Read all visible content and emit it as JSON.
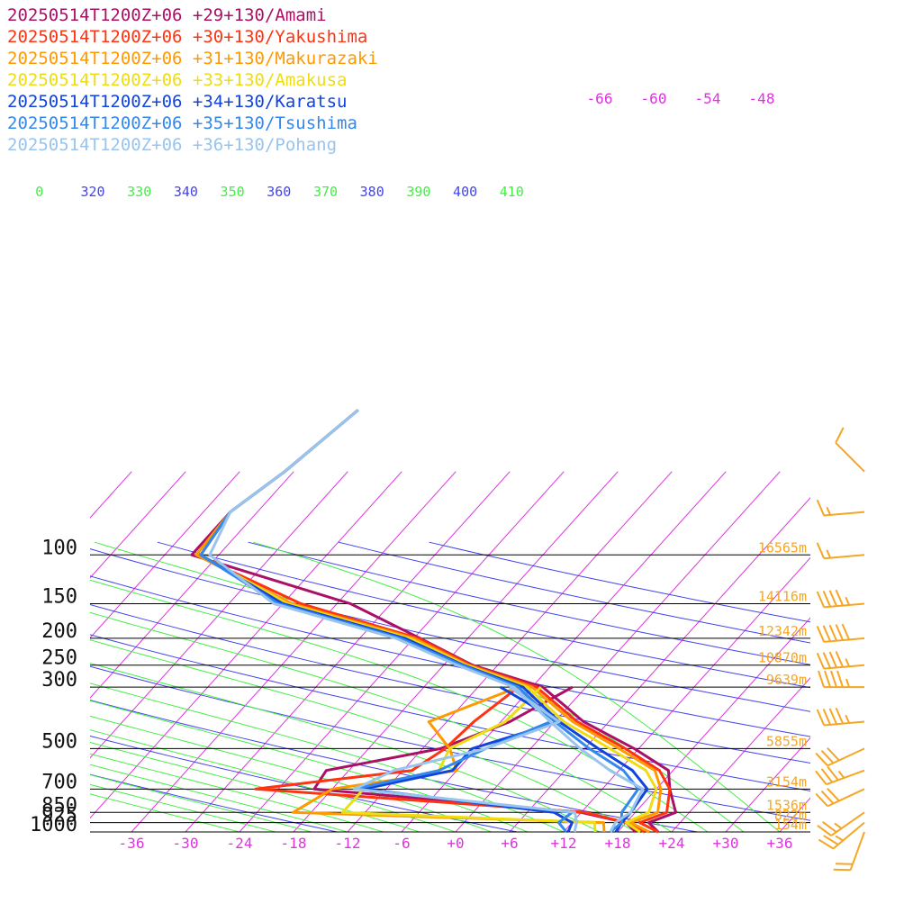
{
  "colors": {
    "isotherm": "#dd33dd",
    "dry_adiabat": "#4444ee",
    "moist_adiabat": "#44ee44",
    "isobar": "#000000",
    "height_label": "#f5a623",
    "barb": "#f5a623"
  },
  "chart_data": {
    "type": "line",
    "title": "",
    "xlabel": "",
    "ylabel": "",
    "y_scale": "log-pressure",
    "xlim": [
      -40,
      40
    ],
    "ylim": [
      1000,
      100
    ],
    "x_ticks": [
      "-36",
      "-30",
      "-24",
      "-18",
      "-12",
      "-6",
      "+0",
      "+6",
      "+12",
      "+18",
      "+24",
      "+30",
      "+36"
    ],
    "upper_isotherm_labels": [
      "-66",
      "-60",
      "-54",
      "-48"
    ],
    "pressure_levels": [
      {
        "p": 100,
        "label": "100",
        "height": "16565m"
      },
      {
        "p": 150,
        "label": "150",
        "height": "14116m"
      },
      {
        "p": 200,
        "label": "200",
        "height": "12342m"
      },
      {
        "p": 250,
        "label": "250",
        "height": "10870m"
      },
      {
        "p": 300,
        "label": "300",
        "height": "9639m"
      },
      {
        "p": 500,
        "label": "500",
        "height": "5855m"
      },
      {
        "p": 700,
        "label": "700",
        "height": "3154m"
      },
      {
        "p": 850,
        "label": "850",
        "height": "1536m"
      },
      {
        "p": 925,
        "label": "925",
        "height": "822m"
      },
      {
        "p": 1000,
        "label": "1000",
        "height": "154m"
      }
    ],
    "theta_labels": [
      {
        "text": "0",
        "color": "#44ee44"
      },
      {
        "text": "320",
        "color": "#4444ee"
      },
      {
        "text": "330",
        "color": "#44ee44"
      },
      {
        "text": "340",
        "color": "#4444ee"
      },
      {
        "text": "350",
        "color": "#44ee44"
      },
      {
        "text": "360",
        "color": "#4444ee"
      },
      {
        "text": "370",
        "color": "#44ee44"
      },
      {
        "text": "380",
        "color": "#4444ee"
      },
      {
        "text": "390",
        "color": "#44ee44"
      },
      {
        "text": "400",
        "color": "#4444ee"
      },
      {
        "text": "410",
        "color": "#44ee44"
      }
    ],
    "series": [
      {
        "name": "20250514T1200Z+06 +29+130/Amami",
        "color": "#aa1166",
        "temperature": [
          [
            1000,
            22.5
          ],
          [
            925,
            20.5
          ],
          [
            850,
            22.5
          ],
          [
            700,
            19.5
          ],
          [
            600,
            17.5
          ],
          [
            500,
            11.5
          ],
          [
            400,
            3.2
          ],
          [
            300,
            -4.8
          ],
          [
            250,
            -14.8
          ],
          [
            200,
            -23.3
          ],
          [
            150,
            -34.5
          ],
          [
            100,
            -57
          ],
          [
            70,
            -57
          ],
          [
            50,
            -55
          ],
          [
            30,
            -53
          ]
        ],
        "dewpoint": [
          [
            1000,
            20
          ],
          [
            925,
            18
          ],
          [
            850,
            12
          ],
          [
            700,
            -20
          ],
          [
            600,
            -20.5
          ],
          [
            500,
            -10
          ],
          [
            400,
            -5
          ],
          [
            300,
            -1.5
          ]
        ]
      },
      {
        "name": "20250514T1200Z+06 +30+130/Yakushima",
        "color": "#ff3311",
        "temperature": [
          [
            1000,
            22.5
          ],
          [
            925,
            19.5
          ],
          [
            850,
            21.5
          ],
          [
            700,
            19.5
          ],
          [
            600,
            16.5
          ],
          [
            500,
            10.5
          ],
          [
            400,
            2.5
          ],
          [
            300,
            -5.5
          ],
          [
            250,
            -15
          ],
          [
            200,
            -23.5
          ],
          [
            150,
            -40
          ],
          [
            100,
            -56.5
          ],
          [
            70,
            -57
          ],
          [
            50,
            -55
          ],
          [
            30,
            -53
          ]
        ],
        "dewpoint": [
          [
            1000,
            21
          ],
          [
            925,
            18
          ],
          [
            850,
            12.5
          ],
          [
            700,
            -26.5
          ],
          [
            600,
            -11
          ],
          [
            500,
            -9.5
          ],
          [
            400,
            -9
          ],
          [
            300,
            -7.5
          ]
        ]
      },
      {
        "name": "20250514T1200Z+06 +31+130/Makurazaki",
        "color": "#ff9900",
        "temperature": [
          [
            1000,
            21.5
          ],
          [
            925,
            18.5
          ],
          [
            850,
            20.5
          ],
          [
            700,
            18.5
          ],
          [
            600,
            16
          ],
          [
            500,
            9.8
          ],
          [
            400,
            2
          ],
          [
            300,
            -6
          ],
          [
            250,
            -15.3
          ],
          [
            200,
            -24
          ],
          [
            150,
            -41
          ],
          [
            100,
            -56.5
          ],
          [
            70,
            -57
          ],
          [
            50,
            -55
          ],
          [
            30,
            -53
          ]
        ],
        "dewpoint": [
          [
            1000,
            16.5
          ],
          [
            925,
            15.5
          ],
          [
            850,
            -20
          ],
          [
            700,
            -18
          ],
          [
            600,
            -6
          ],
          [
            500,
            -9
          ],
          [
            400,
            -14
          ],
          [
            300,
            -7.5
          ]
        ]
      },
      {
        "name": "20250514T1200Z+06 +33+130/Amakusa",
        "color": "#eedd11",
        "temperature": [
          [
            1000,
            20.5
          ],
          [
            925,
            18
          ],
          [
            850,
            19.5
          ],
          [
            700,
            18
          ],
          [
            600,
            15
          ],
          [
            500,
            8.8
          ],
          [
            400,
            1
          ],
          [
            300,
            -6.5
          ],
          [
            250,
            -15.5
          ],
          [
            200,
            -24.5
          ],
          [
            150,
            -41.5
          ],
          [
            100,
            -56
          ],
          [
            70,
            -57
          ],
          [
            50,
            -55
          ],
          [
            30,
            -53
          ]
        ],
        "dewpoint": [
          [
            1000,
            15.5
          ],
          [
            925,
            14.5
          ],
          [
            850,
            -14.5
          ],
          [
            700,
            -14.5
          ],
          [
            600,
            -8
          ],
          [
            500,
            -9
          ],
          [
            400,
            -5.5
          ],
          [
            300,
            -5
          ]
        ]
      },
      {
        "name": "20250514T1200Z+06 +34+130/Karatsu",
        "color": "#1144dd",
        "temperature": [
          [
            1000,
            17.8
          ],
          [
            925,
            17.5
          ],
          [
            850,
            17.5
          ],
          [
            700,
            17
          ],
          [
            600,
            13.5
          ],
          [
            500,
            7.5
          ],
          [
            400,
            0.5
          ],
          [
            300,
            -7
          ],
          [
            250,
            -15.8
          ],
          [
            200,
            -25
          ],
          [
            150,
            -42
          ],
          [
            100,
            -56
          ],
          [
            70,
            -57
          ],
          [
            50,
            -55
          ],
          [
            30,
            -53
          ]
        ],
        "dewpoint": [
          [
            1000,
            12.5
          ],
          [
            925,
            12
          ],
          [
            850,
            9
          ],
          [
            700,
            -14.5
          ],
          [
            600,
            -6.5
          ],
          [
            500,
            -6.5
          ],
          [
            400,
            0.5
          ],
          [
            300,
            -9.5
          ]
        ]
      },
      {
        "name": "20250514T1200Z+06 +35+130/Tsushima",
        "color": "#3388ee",
        "temperature": [
          [
            1000,
            17.2
          ],
          [
            925,
            17.5
          ],
          [
            850,
            16.5
          ],
          [
            700,
            16
          ],
          [
            600,
            12.5
          ],
          [
            500,
            6.5
          ],
          [
            400,
            0
          ],
          [
            300,
            -7.5
          ],
          [
            250,
            -16
          ],
          [
            200,
            -25.5
          ],
          [
            150,
            -42.5
          ],
          [
            100,
            -56
          ],
          [
            70,
            -57
          ],
          [
            50,
            -55
          ],
          [
            30,
            -53
          ]
        ],
        "dewpoint": [
          [
            1000,
            12.3
          ],
          [
            925,
            10.5
          ],
          [
            850,
            11
          ],
          [
            700,
            -15.5
          ],
          [
            600,
            -8
          ],
          [
            500,
            -5
          ],
          [
            400,
            -0.5
          ],
          [
            300,
            -7.5
          ]
        ]
      },
      {
        "name": "20250514T1200Z+06 +36+130/Pohang",
        "color": "#99c4ee",
        "temperature": [
          [
            1000,
            17.2
          ],
          [
            925,
            16.8
          ],
          [
            850,
            17.5
          ],
          [
            700,
            16.5
          ],
          [
            600,
            11
          ],
          [
            500,
            5.5
          ],
          [
            400,
            -0.5
          ],
          [
            300,
            -8
          ],
          [
            250,
            -16.5
          ],
          [
            200,
            -26
          ],
          [
            150,
            -43
          ],
          [
            100,
            -55
          ],
          [
            70,
            -57
          ],
          [
            50,
            -55
          ],
          [
            30,
            -53
          ]
        ],
        "dewpoint": [
          [
            1000,
            13.2
          ],
          [
            925,
            12.5
          ],
          [
            850,
            11.3
          ],
          [
            700,
            -15.5
          ],
          [
            600,
            -13
          ],
          [
            500,
            -5
          ],
          [
            400,
            0.5
          ],
          [
            300,
            -8.5
          ]
        ]
      }
    ],
    "wind_barbs": [
      {
        "p": 1000,
        "speed_kt": 20,
        "dir_deg": 200
      },
      {
        "p": 925,
        "speed_kt": 25,
        "dir_deg": 230
      },
      {
        "p": 850,
        "speed_kt": 25,
        "dir_deg": 235
      },
      {
        "p": 700,
        "speed_kt": 30,
        "dir_deg": 245
      },
      {
        "p": 600,
        "speed_kt": 35,
        "dir_deg": 250
      },
      {
        "p": 500,
        "speed_kt": 30,
        "dir_deg": 245
      },
      {
        "p": 400,
        "speed_kt": 45,
        "dir_deg": 265
      },
      {
        "p": 300,
        "speed_kt": 45,
        "dir_deg": 270
      },
      {
        "p": 250,
        "speed_kt": 45,
        "dir_deg": 265
      },
      {
        "p": 200,
        "speed_kt": 50,
        "dir_deg": 265
      },
      {
        "p": 150,
        "speed_kt": 45,
        "dir_deg": 265
      },
      {
        "p": 100,
        "speed_kt": 15,
        "dir_deg": 265
      },
      {
        "p": 70,
        "speed_kt": 15,
        "dir_deg": 265
      },
      {
        "p": 50,
        "speed_kt": 10,
        "dir_deg": 315
      }
    ]
  }
}
